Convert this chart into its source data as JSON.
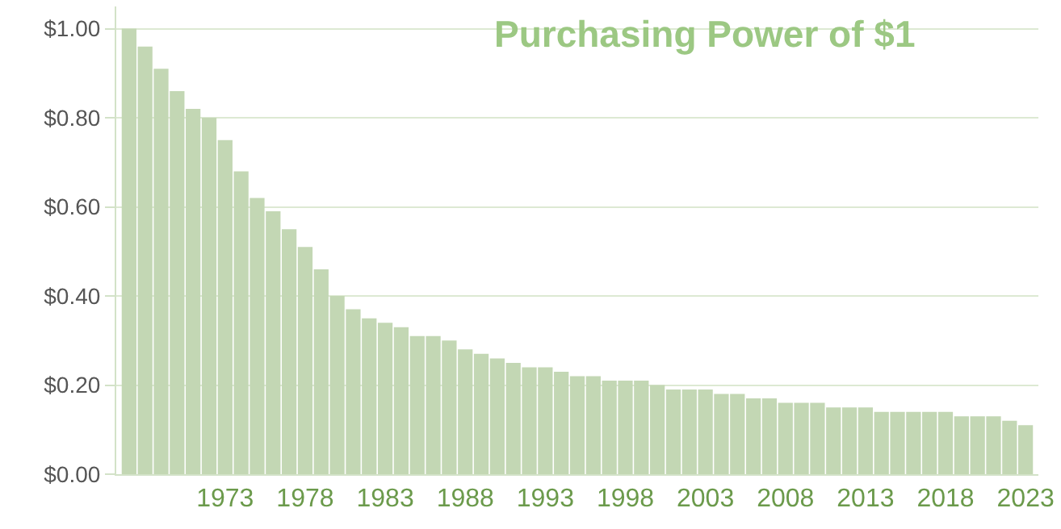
{
  "chart_data": {
    "type": "bar",
    "title": "Purchasing Power of $1",
    "categories": [
      null,
      null,
      null,
      null,
      null,
      null,
      "1973",
      null,
      null,
      null,
      null,
      "1978",
      null,
      null,
      null,
      null,
      "1983",
      null,
      null,
      null,
      null,
      "1988",
      null,
      null,
      null,
      null,
      "1993",
      null,
      null,
      null,
      null,
      "1998",
      null,
      null,
      null,
      null,
      "2003",
      null,
      null,
      null,
      null,
      "2008",
      null,
      null,
      null,
      null,
      "2013",
      null,
      null,
      null,
      null,
      "2018",
      null,
      null,
      null,
      null,
      "2023"
    ],
    "values": [
      1.0,
      0.96,
      0.91,
      0.86,
      0.82,
      0.8,
      0.75,
      0.68,
      0.62,
      0.59,
      0.55,
      0.51,
      0.46,
      0.4,
      0.37,
      0.35,
      0.34,
      0.33,
      0.31,
      0.31,
      0.3,
      0.28,
      0.27,
      0.26,
      0.25,
      0.24,
      0.24,
      0.23,
      0.22,
      0.22,
      0.21,
      0.21,
      0.21,
      0.2,
      0.19,
      0.19,
      0.19,
      0.18,
      0.18,
      0.17,
      0.17,
      0.16,
      0.16,
      0.16,
      0.15,
      0.15,
      0.15,
      0.14,
      0.14,
      0.14,
      0.14,
      0.14,
      0.13,
      0.13,
      0.13,
      0.12,
      0.11
    ],
    "color": "#c3d7b4",
    "ylim": [
      0,
      1.05
    ],
    "yticks": [
      {
        "value": 0,
        "label": "$0.00"
      },
      {
        "value": 0.2,
        "label": "$0.20"
      },
      {
        "value": 0.4,
        "label": "$0.40"
      },
      {
        "value": 0.6,
        "label": "$0.60"
      },
      {
        "value": 0.8,
        "label": "$0.80"
      },
      {
        "value": 1.0,
        "label": "$1.00"
      }
    ],
    "grid": "y"
  }
}
